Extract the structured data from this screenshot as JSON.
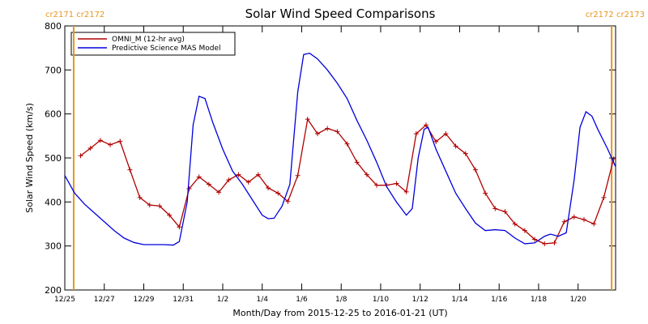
{
  "chart_data": {
    "type": "line",
    "title": "Solar Wind Speed Comparisons",
    "xlabel": "Month/Day from 2015-12-25 to 2016-01-21 (UT)",
    "ylabel": "Solar Wind Speed (km/s)",
    "xlim": [
      0,
      27.9
    ],
    "ylim": [
      200,
      800
    ],
    "xticks": [
      {
        "value": 0,
        "label": "12/25"
      },
      {
        "value": 2,
        "label": "12/27"
      },
      {
        "value": 4,
        "label": "12/29"
      },
      {
        "value": 6,
        "label": "12/31"
      },
      {
        "value": 8,
        "label": "1/2"
      },
      {
        "value": 10,
        "label": "1/4"
      },
      {
        "value": 12,
        "label": "1/6"
      },
      {
        "value": 14,
        "label": "1/8"
      },
      {
        "value": 16,
        "label": "1/10"
      },
      {
        "value": 18,
        "label": "1/12"
      },
      {
        "value": 20,
        "label": "1/14"
      },
      {
        "value": 22,
        "label": "1/16"
      },
      {
        "value": 24,
        "label": "1/18"
      },
      {
        "value": 26,
        "label": "1/20"
      }
    ],
    "yticks": [
      200,
      300,
      400,
      500,
      600,
      700,
      800
    ],
    "boundaries": [
      {
        "x": 0.45,
        "label": "cr2171 cr2172",
        "color": "#e8961e"
      },
      {
        "x": 27.7,
        "label": "cr2172 cr2173",
        "color": "#e8961e"
      }
    ],
    "legend": "upper left",
    "series": [
      {
        "name": "OMNI_M (12-hr avg)",
        "color": "#b00000",
        "marker": "+",
        "x": [
          0.8,
          1.3,
          1.8,
          2.3,
          2.8,
          3.3,
          3.8,
          4.3,
          4.8,
          5.3,
          5.8,
          6.3,
          6.8,
          7.3,
          7.8,
          8.3,
          8.8,
          9.3,
          9.8,
          10.3,
          10.8,
          11.3,
          11.8,
          12.3,
          12.8,
          13.3,
          13.8,
          14.3,
          14.8,
          15.3,
          15.8,
          16.3,
          16.8,
          17.3,
          17.8,
          18.3,
          18.8,
          19.3,
          19.8,
          20.3,
          20.8,
          21.3,
          21.8,
          22.3,
          22.8,
          23.3,
          23.8,
          24.3,
          24.8,
          25.3,
          25.8,
          26.3,
          26.8,
          27.3,
          27.8
        ],
        "values": [
          505,
          522,
          540,
          530,
          538,
          473,
          410,
          393,
          391,
          370,
          343,
          430,
          457,
          440,
          422,
          450,
          462,
          445,
          462,
          432,
          420,
          401,
          460,
          588,
          555,
          567,
          560,
          532,
          490,
          462,
          438,
          438,
          442,
          423,
          555,
          575,
          537,
          555,
          527,
          510,
          473,
          420,
          385,
          378,
          350,
          335,
          315,
          305,
          307,
          355,
          366,
          360,
          350,
          410,
          498
        ]
      },
      {
        "name": "Predictive Science MAS Model",
        "color": "#0000dd",
        "x": [
          0.0,
          0.5,
          1.0,
          1.5,
          2.0,
          2.5,
          3.0,
          3.5,
          4.0,
          5.0,
          5.5,
          5.8,
          6.2,
          6.5,
          6.8,
          7.1,
          7.5,
          8.0,
          8.5,
          9.0,
          9.5,
          10.0,
          10.3,
          10.6,
          11.0,
          11.4,
          11.8,
          12.1,
          12.4,
          12.8,
          13.3,
          13.8,
          14.3,
          14.8,
          15.3,
          15.8,
          16.3,
          16.8,
          17.3,
          17.6,
          17.9,
          18.2,
          18.4,
          18.8,
          19.3,
          19.8,
          20.3,
          20.8,
          21.3,
          21.8,
          22.3,
          22.8,
          23.3,
          23.8,
          24.3,
          24.6,
          25.0,
          25.4,
          25.8,
          26.1,
          26.4,
          26.7,
          27.0,
          27.5,
          27.9
        ],
        "values": [
          460,
          420,
          395,
          375,
          355,
          335,
          318,
          308,
          303,
          303,
          302,
          310,
          400,
          575,
          640,
          635,
          580,
          520,
          470,
          440,
          405,
          370,
          362,
          363,
          390,
          440,
          650,
          735,
          738,
          725,
          700,
          670,
          635,
          585,
          540,
          490,
          435,
          400,
          370,
          385,
          500,
          565,
          570,
          520,
          470,
          420,
          385,
          352,
          335,
          337,
          335,
          318,
          305,
          307,
          322,
          327,
          322,
          330,
          450,
          570,
          605,
          595,
          565,
          520,
          480
        ]
      }
    ]
  }
}
